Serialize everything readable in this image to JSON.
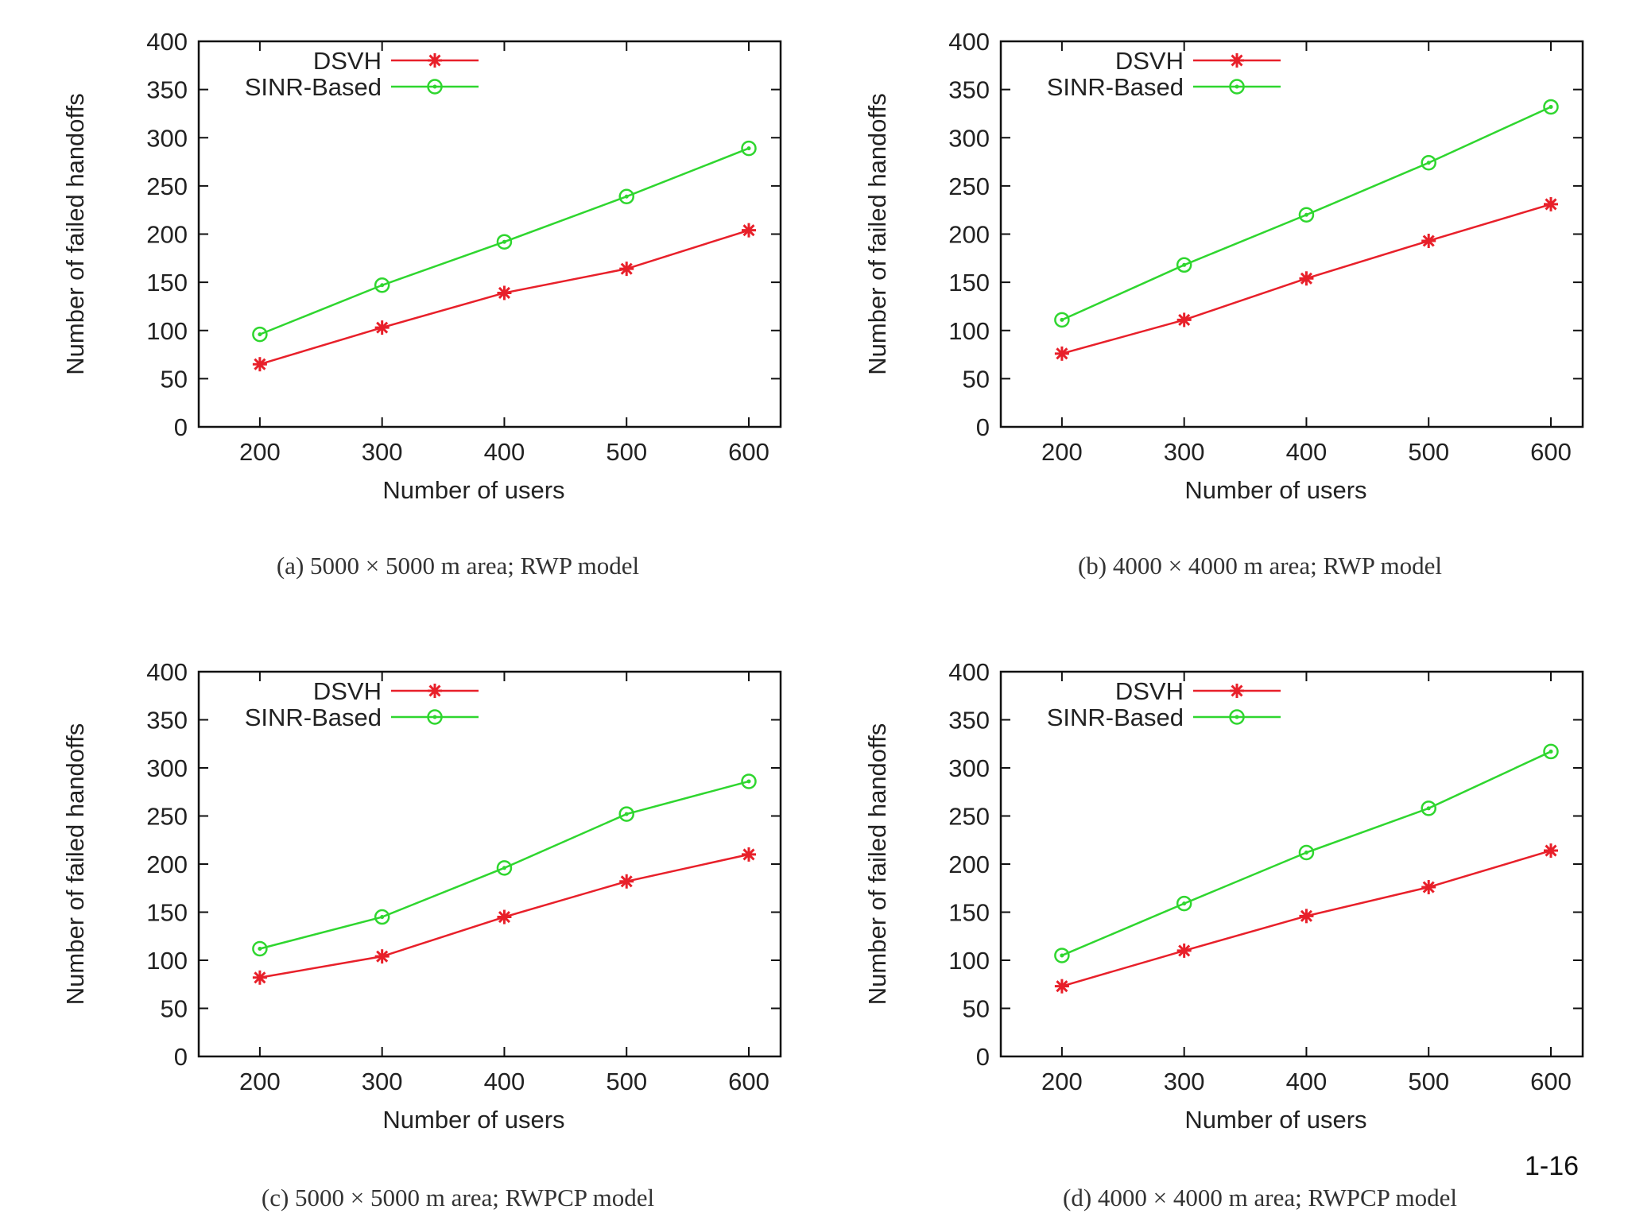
{
  "slide_number": "1-16",
  "colors": {
    "dsvh": "#e8202a",
    "sinr": "#2fd62f",
    "axis": "#111111"
  },
  "chart_data": [
    {
      "type": "line",
      "caption": "(a) 5000 × 5000 m area; RWP model",
      "xlabel": "Number of users",
      "ylabel": "Number of failed handoffs",
      "x": [
        200,
        300,
        400,
        500,
        600
      ],
      "xticks": [
        200,
        300,
        400,
        500,
        600
      ],
      "yticks": [
        0,
        50,
        100,
        150,
        200,
        250,
        300,
        350,
        400
      ],
      "xlim": [
        150,
        600
      ],
      "ylim": [
        0,
        400
      ],
      "legend_position": "top-left",
      "grid": false,
      "series": [
        {
          "name": "DSVH",
          "marker": "star",
          "values": [
            65,
            103,
            139,
            164,
            204
          ]
        },
        {
          "name": "SINR-Based",
          "marker": "circle",
          "values": [
            96,
            147,
            192,
            239,
            289
          ]
        }
      ]
    },
    {
      "type": "line",
      "caption": "(b) 4000 × 4000 m area; RWP model",
      "xlabel": "Number of users",
      "ylabel": "Number of failed handoffs",
      "x": [
        200,
        300,
        400,
        500,
        600
      ],
      "xticks": [
        200,
        300,
        400,
        500,
        600
      ],
      "yticks": [
        0,
        50,
        100,
        150,
        200,
        250,
        300,
        350,
        400
      ],
      "xlim": [
        150,
        600
      ],
      "ylim": [
        0,
        400
      ],
      "legend_position": "top-left",
      "grid": false,
      "series": [
        {
          "name": "DSVH",
          "marker": "star",
          "values": [
            76,
            111,
            154,
            193,
            231
          ]
        },
        {
          "name": "SINR-Based",
          "marker": "circle",
          "values": [
            111,
            168,
            220,
            274,
            332
          ]
        }
      ]
    },
    {
      "type": "line",
      "caption": "(c) 5000 × 5000 m area; RWPCP model",
      "xlabel": "Number of users",
      "ylabel": "Number of failed handoffs",
      "x": [
        200,
        300,
        400,
        500,
        600
      ],
      "xticks": [
        200,
        300,
        400,
        500,
        600
      ],
      "yticks": [
        0,
        50,
        100,
        150,
        200,
        250,
        300,
        350,
        400
      ],
      "xlim": [
        150,
        600
      ],
      "ylim": [
        0,
        400
      ],
      "legend_position": "top-left",
      "grid": false,
      "series": [
        {
          "name": "DSVH",
          "marker": "star",
          "values": [
            82,
            104,
            145,
            182,
            210
          ]
        },
        {
          "name": "SINR-Based",
          "marker": "circle",
          "values": [
            112,
            145,
            196,
            252,
            286
          ]
        }
      ]
    },
    {
      "type": "line",
      "caption": "(d) 4000 × 4000 m area; RWPCP model",
      "xlabel": "Number of users",
      "ylabel": "Number of failed handoffs",
      "x": [
        200,
        300,
        400,
        500,
        600
      ],
      "xticks": [
        200,
        300,
        400,
        500,
        600
      ],
      "yticks": [
        0,
        50,
        100,
        150,
        200,
        250,
        300,
        350,
        400
      ],
      "xlim": [
        150,
        600
      ],
      "ylim": [
        0,
        400
      ],
      "legend_position": "top-left",
      "grid": false,
      "series": [
        {
          "name": "DSVH",
          "marker": "star",
          "values": [
            73,
            110,
            146,
            176,
            214
          ]
        },
        {
          "name": "SINR-Based",
          "marker": "circle",
          "values": [
            105,
            159,
            212,
            258,
            317
          ]
        }
      ]
    }
  ]
}
